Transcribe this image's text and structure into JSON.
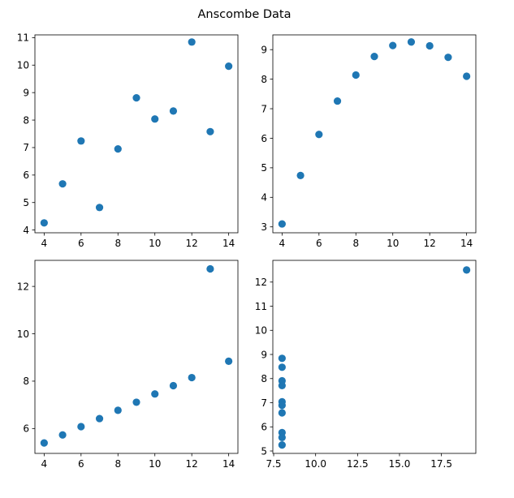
{
  "figure": {
    "title": "Anscombe Data"
  },
  "chart_data": [
    {
      "type": "scatter",
      "title": "",
      "xlabel": "",
      "ylabel": "",
      "color": "#1f77b4",
      "grid": false,
      "xlim": [
        3.5,
        14.5
      ],
      "ylim": [
        3.9,
        11.1
      ],
      "xticks": [
        4,
        6,
        8,
        10,
        12,
        14
      ],
      "xtick_labels": [
        "4",
        "6",
        "8",
        "10",
        "12",
        "14"
      ],
      "yticks": [
        4,
        5,
        6,
        7,
        8,
        9,
        10,
        11
      ],
      "ytick_labels": [
        "4",
        "5",
        "6",
        "7",
        "8",
        "9",
        "10",
        "11"
      ],
      "x": [
        10,
        8,
        13,
        9,
        11,
        14,
        6,
        4,
        12,
        7,
        5
      ],
      "y": [
        8.04,
        6.95,
        7.58,
        8.81,
        8.33,
        9.96,
        7.24,
        4.26,
        10.84,
        4.82,
        5.68
      ]
    },
    {
      "type": "scatter",
      "title": "",
      "xlabel": "",
      "ylabel": "",
      "color": "#1f77b4",
      "grid": false,
      "xlim": [
        3.5,
        14.5
      ],
      "ylim": [
        2.8,
        9.5
      ],
      "xticks": [
        4,
        6,
        8,
        10,
        12,
        14
      ],
      "xtick_labels": [
        "4",
        "6",
        "8",
        "10",
        "12",
        "14"
      ],
      "yticks": [
        3,
        4,
        5,
        6,
        7,
        8,
        9
      ],
      "ytick_labels": [
        "3",
        "4",
        "5",
        "6",
        "7",
        "8",
        "9"
      ],
      "x": [
        10,
        8,
        13,
        9,
        11,
        14,
        6,
        4,
        12,
        7,
        5
      ],
      "y": [
        9.14,
        8.14,
        8.74,
        8.77,
        9.26,
        8.1,
        6.13,
        3.1,
        9.13,
        7.26,
        4.74
      ]
    },
    {
      "type": "scatter",
      "title": "",
      "xlabel": "",
      "ylabel": "",
      "color": "#1f77b4",
      "grid": false,
      "xlim": [
        3.5,
        14.5
      ],
      "ylim": [
        4.95,
        13.1
      ],
      "xticks": [
        4,
        6,
        8,
        10,
        12,
        14
      ],
      "xtick_labels": [
        "4",
        "6",
        "8",
        "10",
        "12",
        "14"
      ],
      "yticks": [
        6,
        8,
        10,
        12
      ],
      "ytick_labels": [
        "6",
        "8",
        "10",
        "12"
      ],
      "x": [
        10,
        8,
        13,
        9,
        11,
        14,
        6,
        4,
        12,
        7,
        5
      ],
      "y": [
        7.46,
        6.77,
        12.74,
        7.11,
        7.81,
        8.84,
        6.08,
        5.39,
        8.15,
        6.42,
        5.73
      ]
    },
    {
      "type": "scatter",
      "title": "",
      "xlabel": "",
      "ylabel": "",
      "color": "#1f77b4",
      "grid": false,
      "xlim": [
        7.45,
        19.55
      ],
      "ylim": [
        4.9,
        12.9
      ],
      "xticks": [
        7.5,
        10.0,
        12.5,
        15.0,
        17.5
      ],
      "xtick_labels": [
        "7.5",
        "10.0",
        "12.5",
        "15.0",
        "17.5"
      ],
      "yticks": [
        5,
        6,
        7,
        8,
        9,
        10,
        11,
        12
      ],
      "ytick_labels": [
        "5",
        "6",
        "7",
        "8",
        "9",
        "10",
        "11",
        "12"
      ],
      "x": [
        8,
        8,
        8,
        8,
        8,
        8,
        8,
        19,
        8,
        8,
        8
      ],
      "y": [
        6.58,
        5.76,
        7.71,
        8.84,
        8.47,
        7.04,
        5.25,
        12.5,
        5.56,
        7.91,
        6.89
      ]
    }
  ]
}
